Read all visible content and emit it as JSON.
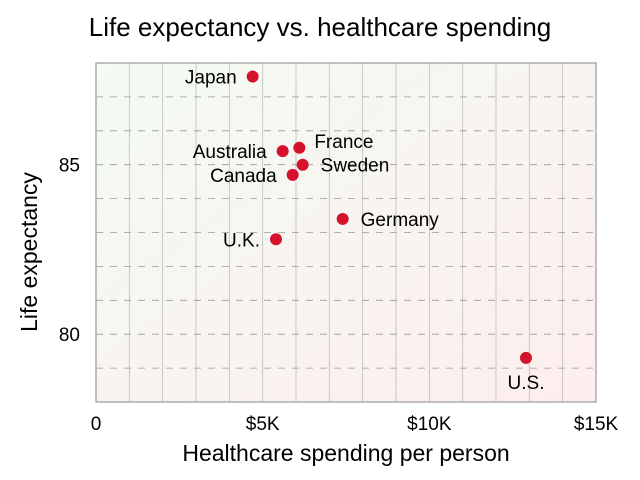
{
  "chart_data": {
    "type": "scatter",
    "title": "Life expectancy vs. healthcare spending",
    "xlabel": "Healthcare spending per person",
    "ylabel": "Life expectancy",
    "xlim": [
      0,
      15000
    ],
    "ylim": [
      78,
      88
    ],
    "grid": true,
    "x_ticks": [
      {
        "value": 0,
        "label": "0"
      },
      {
        "value": 5000,
        "label": "$5K"
      },
      {
        "value": 10000,
        "label": "$10K"
      },
      {
        "value": 15000,
        "label": "$15K"
      }
    ],
    "y_ticks": [
      {
        "value": 80,
        "label": "80"
      },
      {
        "value": 85,
        "label": "85"
      }
    ],
    "colors": {
      "point": "#d4122b",
      "grid_major": "#bbbbbb",
      "grid_minor": "#999999",
      "frame": "#9a9a9a",
      "bg_top_left": "#f3fbf3",
      "bg_bottom_right": "#fdeeee"
    },
    "points": [
      {
        "label": "Japan",
        "x": 4700,
        "y": 87.6,
        "label_pos": "left"
      },
      {
        "label": "France",
        "x": 6100,
        "y": 85.5,
        "label_pos": "upper-right"
      },
      {
        "label": "Australia",
        "x": 5600,
        "y": 85.4,
        "label_pos": "left"
      },
      {
        "label": "Sweden",
        "x": 6200,
        "y": 85.0,
        "label_pos": "right"
      },
      {
        "label": "Canada",
        "x": 5900,
        "y": 84.7,
        "label_pos": "left"
      },
      {
        "label": "Germany",
        "x": 7400,
        "y": 83.4,
        "label_pos": "right"
      },
      {
        "label": "U.K.",
        "x": 5400,
        "y": 82.8,
        "label_pos": "left"
      },
      {
        "label": "U.S.",
        "x": 12900,
        "y": 79.3,
        "label_pos": "below"
      }
    ]
  }
}
